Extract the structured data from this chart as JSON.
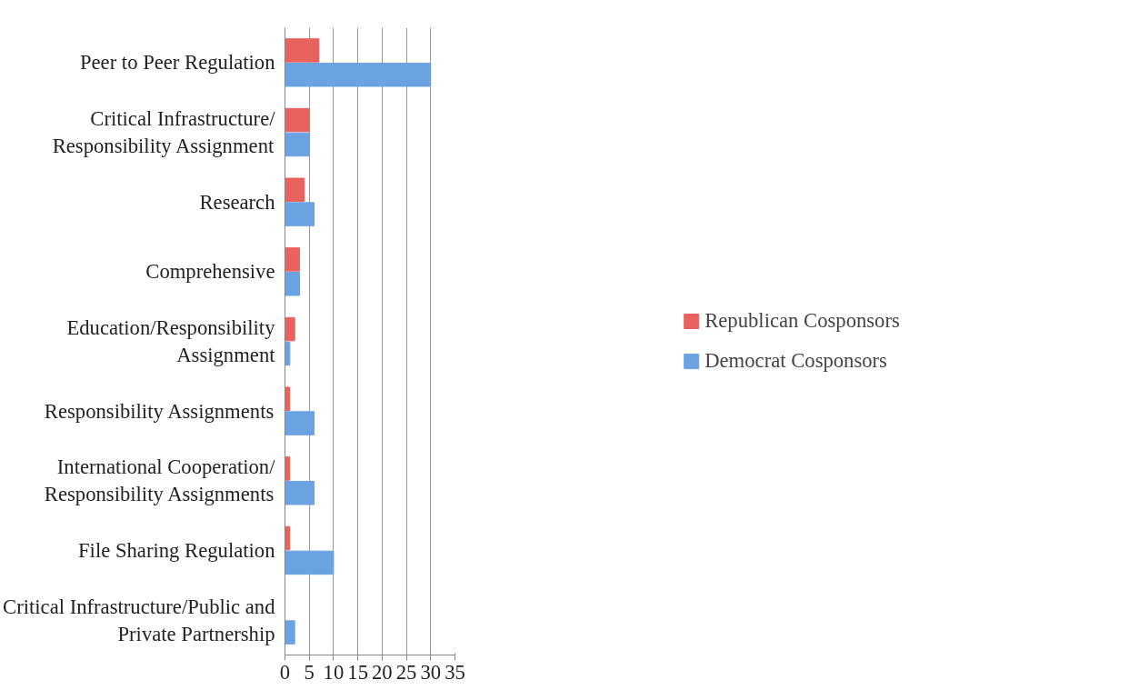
{
  "chart_data": {
    "type": "bar",
    "orientation": "horizontal",
    "categories": [
      "Peer to Peer Regulation",
      "Critical Infrastructure/\nResponsibility Assignment",
      "Research",
      "Comprehensive",
      "Education/Responsibility\nAssignment",
      "Responsibility Assignments",
      "International Cooperation/\nResponsibility Assignments",
      "File Sharing Regulation",
      "Critical Infrastructure/Public and\nPrivate Partnership"
    ],
    "series": [
      {
        "name": "Republican Cosponsors",
        "color": "#e8635e",
        "values": [
          7,
          5,
          4,
          3,
          2,
          1,
          1,
          1,
          0
        ]
      },
      {
        "name": "Democrat Cosponsors",
        "color": "#6aa2e2",
        "values": [
          30,
          5,
          6,
          3,
          1,
          6,
          6,
          10,
          2
        ]
      }
    ],
    "xlim": [
      0,
      35
    ],
    "xticks": [
      0,
      5,
      10,
      15,
      20,
      25,
      30,
      35
    ],
    "grid": "x",
    "legend": "right"
  }
}
